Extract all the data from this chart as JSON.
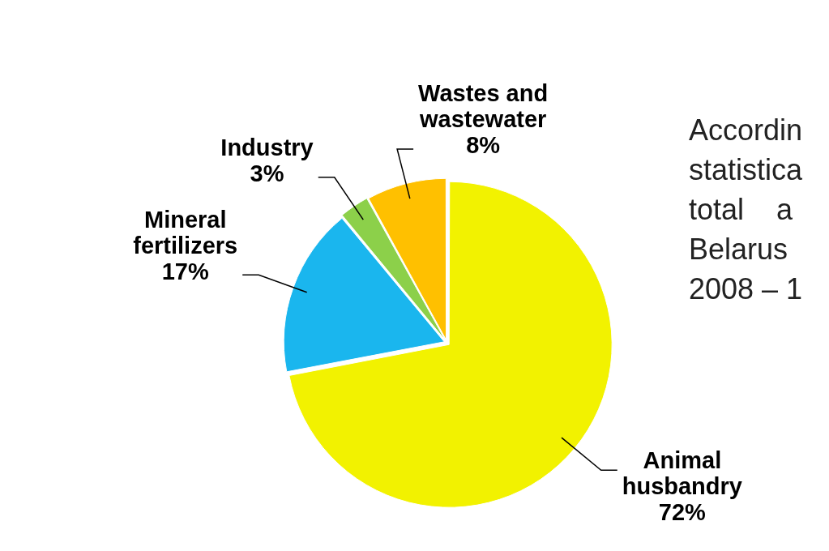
{
  "chart_data": {
    "type": "pie",
    "categories": [
      "Animal husbandry",
      "Mineral fertilizers",
      "Industry",
      "Wastes and wastewater"
    ],
    "values": [
      72,
      17,
      3,
      8
    ],
    "value_labels": [
      "72%",
      "17%",
      "3%",
      "8%"
    ],
    "colors": [
      "#f2f200",
      "#1ab6ee",
      "#8cd04a",
      "#ffc000"
    ],
    "legend": false,
    "annotations": [
      "Accordin\nstatistica\ntotal    a\nBelarus\n2008 – 1"
    ]
  }
}
